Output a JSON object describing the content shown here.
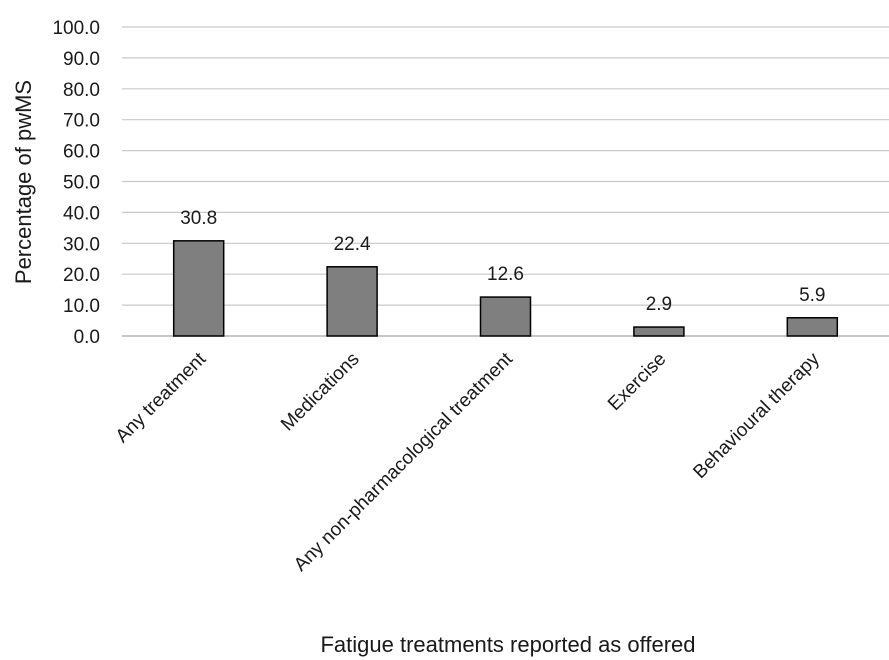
{
  "chart_data": {
    "type": "bar",
    "title": "",
    "xlabel": "Fatigue treatments reported as offered",
    "ylabel": "Percentage of pwMS",
    "categories": [
      "Any treatment",
      "Medications",
      "Any non-pharmacological treatment",
      "Exercise",
      "Behavioural therapy"
    ],
    "values": [
      30.8,
      22.4,
      12.6,
      2.9,
      5.9
    ],
    "value_labels": [
      "30.8",
      "22.4",
      "12.6",
      "2.9",
      "5.9"
    ],
    "ylim": [
      0,
      100
    ],
    "yticks": [
      "0.0",
      "10.0",
      "20.0",
      "30.0",
      "40.0",
      "50.0",
      "60.0",
      "70.0",
      "80.0",
      "90.0",
      "100.0"
    ],
    "grid": true,
    "legend": "none",
    "bar_color": "#7f7f7f",
    "bar_edge_color": "#000000",
    "grid_color": "#c8c8c8"
  }
}
